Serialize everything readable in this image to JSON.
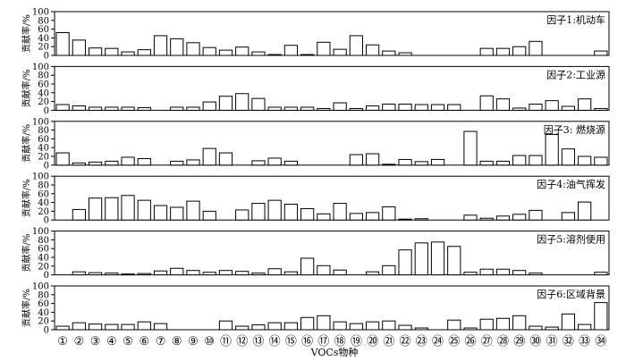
{
  "chart_data": {
    "type": "bar",
    "ylabel": "贡献率/%",
    "xlabel": "VOCs物种",
    "x_circled": [
      "①",
      "②",
      "③",
      "④",
      "⑤",
      "⑥",
      "⑦",
      "⑧",
      "⑨",
      "⑩",
      "⑪",
      "⑫",
      "⑬",
      "⑭",
      "⑮",
      "⑯",
      "⑰",
      "⑱",
      "⑲",
      "⑳",
      "㉑",
      "㉒",
      "㉓",
      "㉔",
      "㉕",
      "㉖",
      "㉗",
      "㉘",
      "㉙",
      "㉚",
      "㉛",
      "㉜",
      "㉝",
      "㉞"
    ],
    "ylim": [
      0,
      100
    ],
    "yticks": [
      0,
      20,
      40,
      60,
      80,
      100
    ],
    "panels": [
      {
        "name": "因子1:机动车",
        "values": [
          52,
          35,
          17,
          16,
          8,
          13,
          45,
          38,
          29,
          18,
          12,
          19,
          8,
          2,
          23,
          2,
          30,
          14,
          45,
          24,
          10,
          6,
          0,
          0,
          0,
          0,
          16,
          16,
          20,
          32,
          0,
          0,
          0,
          10
        ]
      },
      {
        "name": "因子2:工业源",
        "values": [
          13,
          10,
          7,
          7,
          7,
          6,
          0,
          7,
          7,
          19,
          32,
          38,
          27,
          7,
          7,
          7,
          4,
          17,
          4,
          10,
          14,
          14,
          13,
          13,
          13,
          0,
          33,
          26,
          5,
          14,
          22,
          9,
          26,
          4
        ]
      },
      {
        "name": "因子3: 燃烧源",
        "values": [
          28,
          5,
          7,
          9,
          18,
          15,
          0,
          9,
          12,
          38,
          28,
          0,
          10,
          16,
          9,
          0,
          0,
          0,
          24,
          26,
          2,
          13,
          8,
          13,
          0,
          77,
          9,
          9,
          22,
          22,
          70,
          37,
          20,
          18
        ]
      },
      {
        "name": "因子4:油气挥发",
        "values": [
          0,
          24,
          50,
          51,
          56,
          45,
          33,
          29,
          43,
          20,
          0,
          23,
          38,
          45,
          36,
          26,
          14,
          38,
          15,
          17,
          30,
          2,
          3,
          0,
          0,
          11,
          4,
          9,
          13,
          22,
          0,
          17,
          41,
          0
        ]
      },
      {
        "name": "因子5:溶剂使用",
        "values": [
          0,
          7,
          5,
          4,
          2,
          3,
          9,
          15,
          10,
          6,
          10,
          8,
          4,
          14,
          7,
          38,
          21,
          11,
          0,
          7,
          21,
          57,
          73,
          75,
          65,
          6,
          13,
          13,
          10,
          4,
          0,
          0,
          0,
          6
        ]
      },
      {
        "name": "因子6:区域背景",
        "values": [
          8,
          16,
          13,
          12,
          12,
          18,
          14,
          0,
          0,
          0,
          20,
          8,
          11,
          16,
          16,
          28,
          32,
          18,
          14,
          18,
          20,
          10,
          4,
          0,
          22,
          4,
          24,
          26,
          32,
          8,
          6,
          36,
          12,
          62
        ]
      }
    ]
  }
}
